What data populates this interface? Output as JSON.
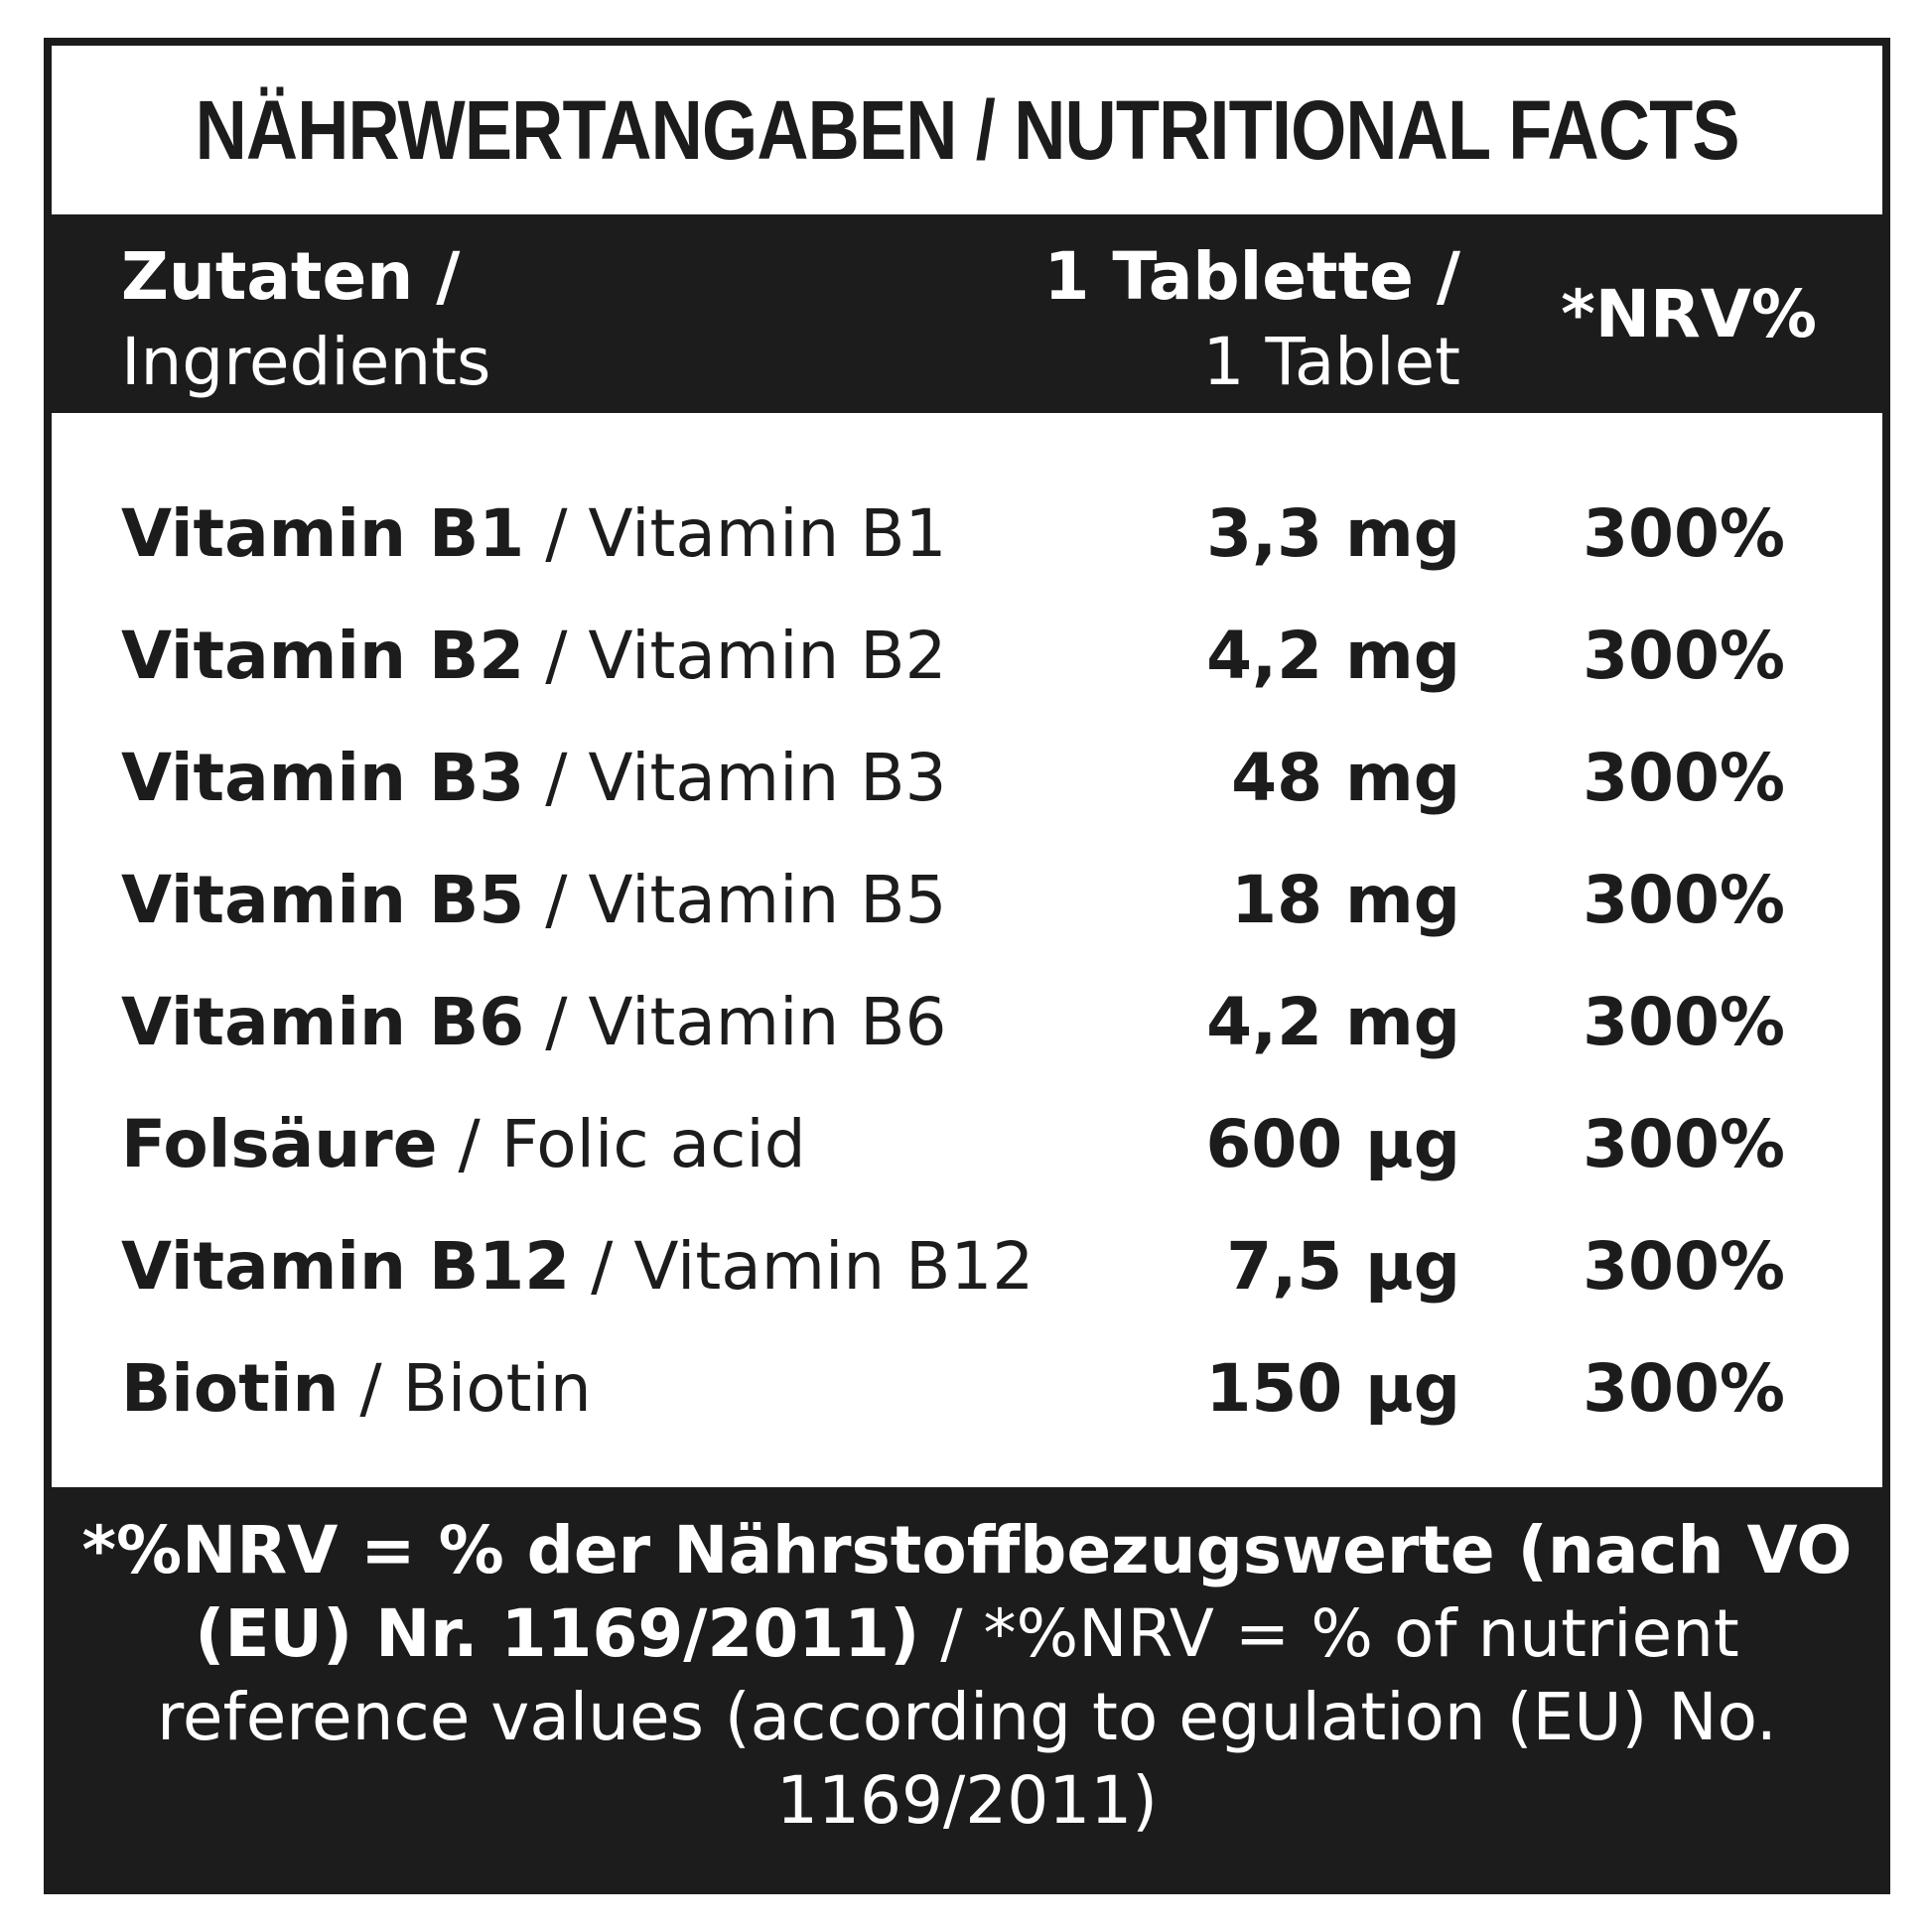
{
  "title": "NÄHRWERTANGABEN / NUTRITIONAL FACTS",
  "header": {
    "ingredients_de": "Zutaten /",
    "ingredients_en": "Ingredients",
    "per_de": "1 Tablette /",
    "per_en": "1 Tablet",
    "nrv": "*NRV%"
  },
  "rows": [
    {
      "name_de": "Vitamin B1",
      "name_en": " / Vitamin B1",
      "amount": "3,3 mg",
      "nrv": "300%"
    },
    {
      "name_de": "Vitamin B2",
      "name_en": " / Vitamin B2",
      "amount": "4,2 mg",
      "nrv": "300%"
    },
    {
      "name_de": "Vitamin B3",
      "name_en": " / Vitamin B3",
      "amount": "48 mg",
      "nrv": "300%"
    },
    {
      "name_de": "Vitamin B5",
      "name_en": " / Vitamin B5",
      "amount": "18 mg",
      "nrv": "300%"
    },
    {
      "name_de": "Vitamin B6",
      "name_en": " / Vitamin B6",
      "amount": "4,2 mg",
      "nrv": "300%"
    },
    {
      "name_de": "Folsäure",
      "name_en": " / Folic acid",
      "amount": "600 µg",
      "nrv": "300%"
    },
    {
      "name_de": "Vitamin B12",
      "name_en": " / Vitamin B12",
      "amount": "7,5 µg",
      "nrv": "300%"
    },
    {
      "name_de": "Biotin",
      "name_en": " / Biotin",
      "amount": "150 µg",
      "nrv": "300%"
    }
  ],
  "footer": {
    "bold_part": "*%NRV = % der Nährstoffbezugswerte (nach VO (EU) Nr. 1169/2011)",
    "regular_part": " / *%NRV = % of nutrient reference values (according to egulation (EU) No. 1169/2011)"
  },
  "colors": {
    "ink": "#1c1c1c",
    "paper": "#ffffff"
  }
}
